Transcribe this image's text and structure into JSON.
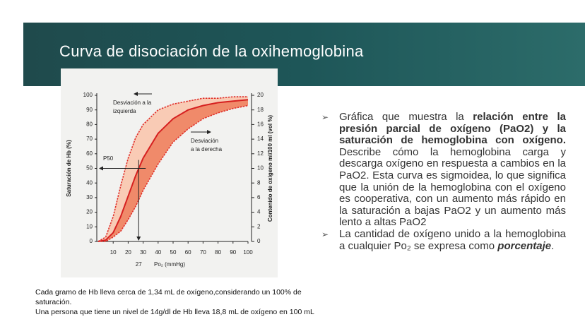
{
  "title": "Curva de disociación de la oxihemoglobina",
  "bullets": [
    [
      {
        "text": "Gráfica que muestra la ",
        "style": "normal"
      },
      {
        "text": "relación entre la presión parcial de oxígeno (PaO2) y la saturación de hemoglobina con oxígeno.",
        "style": "bold"
      },
      {
        "text": " Describe cómo la hemoglobina carga y descarga oxígeno en respuesta a cambios en la PaO2. Esta curva es sigmoidea, lo que significa que la unión de la hemoglobina con el oxígeno es cooperativa, con un aumento más rápido en la saturación a bajas PaO2 y un aumento más lento a altas PaO2",
        "style": "normal"
      }
    ],
    [
      {
        "text": "La cantidad de oxígeno unido a la hemoglobina a cualquier Po₂ se expresa como ",
        "style": "normal"
      },
      {
        "text": "porcentaje",
        "style": "bolditalic"
      },
      {
        "text": ".",
        "style": "normal"
      }
    ]
  ],
  "notes": [
    "Cada gramo de Hb lleva cerca de 1,34 mL de oxígeno,considerando un 100% de saturación.",
    "Una persona que tiene un nivel de 14g/dl de Hb lleva 18,8 mL de oxígeno en 100 mL"
  ],
  "chart_data": {
    "type": "line",
    "x_label": "Po₂ (mmHg)",
    "y_label": "Saturación de Hb (%)",
    "y2_label": "Contenido de oxígeno ml/100 ml (vol %)",
    "annotations": {
      "left_shift": [
        "Desviación a la",
        "izquierda"
      ],
      "right_shift": [
        "Desviación",
        "a la derecha"
      ],
      "p50": "P50",
      "p50_x": 27
    },
    "x": [
      0,
      5,
      10,
      15,
      20,
      25,
      30,
      40,
      50,
      60,
      70,
      80,
      90,
      100
    ],
    "series": [
      {
        "color": "#e0302a",
        "dashed": true,
        "values": [
          0,
          3,
          17,
          38,
          57,
          71,
          80,
          90,
          94,
          96,
          98,
          98,
          99,
          99
        ]
      },
      {
        "color": "#d62020",
        "dashed": false,
        "values": [
          0,
          1,
          6,
          17,
          31,
          45,
          57,
          74,
          84,
          90,
          93,
          95,
          96,
          97
        ]
      },
      {
        "color": "#e0302a",
        "dashed": true,
        "values": [
          0,
          0,
          3,
          7,
          15,
          24,
          35,
          53,
          68,
          77,
          84,
          88,
          91,
          93
        ]
      }
    ],
    "xlim": [
      0,
      100
    ],
    "xticks": [
      10,
      20,
      30,
      40,
      50,
      60,
      70,
      80,
      90,
      100
    ],
    "ylim": [
      0,
      100
    ],
    "yticks": [
      0,
      10,
      20,
      30,
      40,
      50,
      60,
      70,
      80,
      90,
      100
    ],
    "y2lim": [
      0,
      20
    ],
    "y2ticks": [
      0,
      2,
      4,
      6,
      8,
      10,
      12,
      14,
      16,
      18,
      20
    ]
  }
}
